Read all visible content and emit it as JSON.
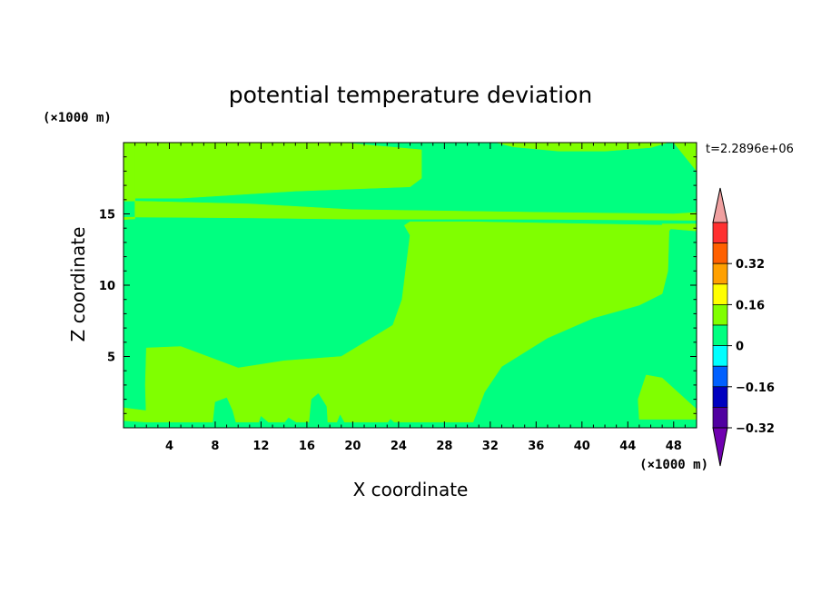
{
  "chart_data": {
    "type": "heatmap",
    "title": "potential temperature deviation",
    "xlabel": "X coordinate",
    "ylabel": "Z coordinate",
    "x_unit": "(×1000 m)",
    "y_unit": "(×1000 m)",
    "time_label": "t=2.2896e+06",
    "xlim": [
      0,
      50
    ],
    "ylim": [
      0,
      20
    ],
    "x_ticks": [
      "4",
      "8",
      "12",
      "16",
      "20",
      "24",
      "28",
      "32",
      "36",
      "40",
      "44",
      "48"
    ],
    "y_ticks": [
      "5",
      "10",
      "15"
    ],
    "background_level_color": "#00FF80",
    "colorbar": {
      "labels": [
        "0.32",
        "0.16",
        "0",
        "−0.16",
        "−0.32"
      ],
      "colors_top_to_bottom": [
        "#FF3030",
        "#FF6000",
        "#FFA000",
        "#FFFF00",
        "#80FF00",
        "#00FF80",
        "#00FFFF",
        "#0060FF",
        "#0000C0",
        "#5000A0"
      ],
      "over_color": "#F0A0A0",
      "under_color": "#7000B0"
    },
    "regions": [
      {
        "level": "0 to 0.08",
        "color": "#80FF00",
        "polygon": [
          [
            1,
            20
          ],
          [
            19,
            20
          ],
          [
            26,
            19.5
          ],
          [
            26,
            17.5
          ],
          [
            25,
            16.9
          ],
          [
            15,
            16.6
          ],
          [
            5,
            16.1
          ],
          [
            1,
            16.1
          ]
        ]
      },
      {
        "level": "0 to 0.08",
        "color": "#80FF00",
        "polygon": [
          [
            1,
            15.9
          ],
          [
            11,
            15.7
          ],
          [
            20,
            15.3
          ],
          [
            37,
            15.1
          ],
          [
            48,
            15
          ],
          [
            50,
            15.1
          ],
          [
            50,
            14.55
          ],
          [
            37,
            14.62
          ],
          [
            20,
            14.63
          ],
          [
            11,
            14.72
          ],
          [
            1,
            14.78
          ]
        ]
      },
      {
        "level": "0 to 0.08",
        "color": "#80FF00",
        "polygon": [
          [
            32.5,
            20
          ],
          [
            34,
            19.7
          ],
          [
            38,
            19.4
          ],
          [
            42,
            19.4
          ],
          [
            46,
            19.65
          ],
          [
            47.5,
            20
          ]
        ]
      },
      {
        "level": "0 to 0.08",
        "color": "#80FF00",
        "polygon": [
          [
            0,
            20
          ],
          [
            1,
            20
          ],
          [
            1,
            15.9
          ],
          [
            0,
            16.4
          ]
        ]
      },
      {
        "level": "0 to 0.08",
        "color": "#80FF00",
        "polygon": [
          [
            0,
            14.75
          ],
          [
            1,
            14.78
          ],
          [
            1,
            14.65
          ],
          [
            0,
            14.6
          ]
        ]
      },
      {
        "level": "0 to 0.08",
        "color": "#80FF00",
        "polygon": [
          [
            0,
            15.9
          ],
          [
            1,
            15.9
          ],
          [
            1,
            16.1
          ],
          [
            0,
            16.4
          ]
        ]
      },
      {
        "level": "0 to 0.08",
        "color": "#80FF00",
        "polygon": [
          [
            24.5,
            14.2
          ],
          [
            25,
            13.5
          ],
          [
            24.3,
            9
          ],
          [
            23.5,
            7.2
          ],
          [
            19,
            5
          ],
          [
            14,
            4.7
          ],
          [
            10,
            4.2
          ],
          [
            5,
            5.7
          ],
          [
            2,
            5.6
          ],
          [
            1.9,
            3
          ],
          [
            2,
            0.4
          ],
          [
            30.5,
            0.4
          ],
          [
            31.5,
            2.5
          ],
          [
            33,
            4.3
          ],
          [
            37,
            6.3
          ],
          [
            41,
            7.7
          ],
          [
            45,
            8.6
          ],
          [
            47,
            9.4
          ],
          [
            47.5,
            11
          ],
          [
            47.6,
            13.8
          ],
          [
            48,
            14.2
          ],
          [
            30,
            14.45
          ],
          [
            25,
            14.45
          ]
        ]
      },
      {
        "level": "0 to 0.08",
        "color": "#80FF00",
        "polygon": [
          [
            45,
            0.6
          ],
          [
            44.9,
            2
          ],
          [
            45.6,
            3.7
          ],
          [
            47,
            3.5
          ],
          [
            50,
            1.3
          ],
          [
            50,
            0.6
          ]
        ]
      },
      {
        "level": "0 to 0.08",
        "color": "#80FF00",
        "polygon": [
          [
            48,
            20
          ],
          [
            50,
            20
          ],
          [
            50,
            18
          ]
        ]
      },
      {
        "level": "0 to 0.08",
        "color": "#80FF00",
        "polygon": [
          [
            0,
            0.5
          ],
          [
            2,
            0.4
          ],
          [
            2,
            1.2
          ],
          [
            0,
            1.4
          ]
        ]
      },
      {
        "level": "0 to 0.08",
        "color": "#80FF00",
        "polygon": [
          [
            47,
            14
          ],
          [
            50,
            13.8
          ],
          [
            50,
            14.3
          ],
          [
            47,
            14.3
          ]
        ]
      },
      {
        "level": "−0.08 to 0",
        "color": "#00FF80",
        "polygon": [
          [
            7.8,
            0.3
          ],
          [
            8,
            1.8
          ],
          [
            9,
            2.1
          ],
          [
            9.5,
            1.2
          ],
          [
            9.8,
            0.3
          ]
        ]
      },
      {
        "level": "−0.08 to 0",
        "color": "#00FF80",
        "polygon": [
          [
            16.2,
            0.3
          ],
          [
            16.4,
            2
          ],
          [
            17,
            2.4
          ],
          [
            17.7,
            1.5
          ],
          [
            17.8,
            0.3
          ]
        ]
      },
      {
        "level": "−0.08 to 0",
        "color": "#00FF80",
        "polygon": [
          [
            11.8,
            0.3
          ],
          [
            12,
            0.8
          ],
          [
            12.6,
            0.4
          ]
        ]
      },
      {
        "level": "−0.08 to 0",
        "color": "#00FF80",
        "polygon": [
          [
            14,
            0.3
          ],
          [
            14.4,
            0.7
          ],
          [
            15.2,
            0.3
          ]
        ]
      },
      {
        "level": "−0.08 to 0",
        "color": "#00FF80",
        "polygon": [
          [
            18.6,
            0.3
          ],
          [
            18.9,
            0.9
          ],
          [
            19.3,
            0.3
          ]
        ]
      },
      {
        "level": "−0.08 to 0",
        "color": "#00FF80",
        "polygon": [
          [
            23,
            0.3
          ],
          [
            23.3,
            0.6
          ],
          [
            23.7,
            0.3
          ]
        ]
      }
    ]
  }
}
